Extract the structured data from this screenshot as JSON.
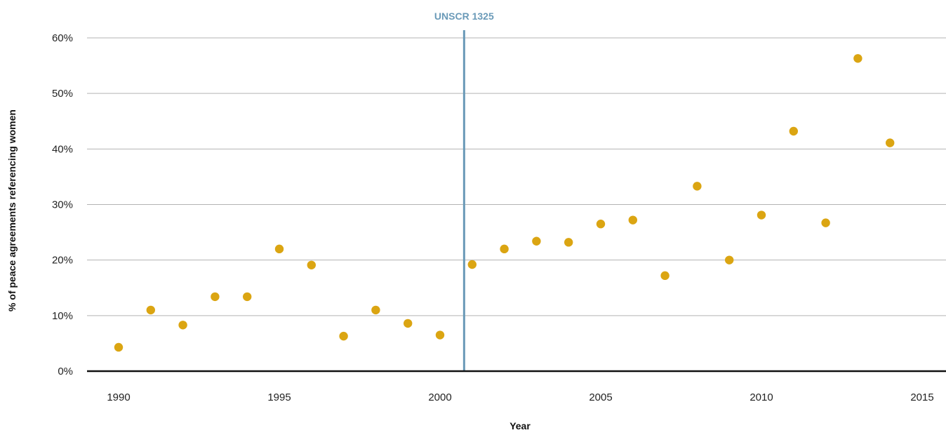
{
  "chart_data": {
    "type": "scatter",
    "title": "",
    "xlabel": "Year",
    "ylabel": "% of peace agreements referencing women",
    "xlim": [
      1988.5,
      2016
    ],
    "ylim": [
      0,
      60
    ],
    "x_ticks": [
      1990,
      1995,
      2000,
      2005,
      2010,
      2015
    ],
    "y_ticks": [
      0,
      10,
      20,
      30,
      40,
      50,
      60
    ],
    "y_tick_labels": [
      "0%",
      "10%",
      "20%",
      "30%",
      "40%",
      "50%",
      "60%"
    ],
    "x_tick_labels": [
      "1990",
      "1995",
      "2000",
      "2005",
      "2010",
      "2015"
    ],
    "grid": true,
    "legend": "none",
    "series": [
      {
        "color": "#dba512",
        "points": [
          {
            "x": 1990,
            "y": 4.3
          },
          {
            "x": 1991,
            "y": 11.0
          },
          {
            "x": 1992,
            "y": 8.3
          },
          {
            "x": 1993,
            "y": 13.4
          },
          {
            "x": 1994,
            "y": 13.4
          },
          {
            "x": 1995,
            "y": 22.0
          },
          {
            "x": 1996,
            "y": 19.1
          },
          {
            "x": 1997,
            "y": 6.3
          },
          {
            "x": 1998,
            "y": 11.0
          },
          {
            "x": 1999,
            "y": 8.6
          },
          {
            "x": 2000,
            "y": 6.5
          },
          {
            "x": 2001,
            "y": 19.2
          },
          {
            "x": 2002,
            "y": 22.0
          },
          {
            "x": 2003,
            "y": 23.4
          },
          {
            "x": 2004,
            "y": 23.2
          },
          {
            "x": 2005,
            "y": 26.5
          },
          {
            "x": 2006,
            "y": 27.2
          },
          {
            "x": 2007,
            "y": 17.2
          },
          {
            "x": 2008,
            "y": 33.3
          },
          {
            "x": 2009,
            "y": 20.0
          },
          {
            "x": 2010,
            "y": 28.1
          },
          {
            "x": 2011,
            "y": 43.2
          },
          {
            "x": 2012,
            "y": 26.7
          },
          {
            "x": 2013,
            "y": 56.3
          },
          {
            "x": 2014,
            "y": 41.1
          }
        ]
      }
    ],
    "annotations": [
      {
        "label": "UNSCR 1325",
        "x": 2000.75,
        "color": "#6a9ab8"
      }
    ]
  }
}
